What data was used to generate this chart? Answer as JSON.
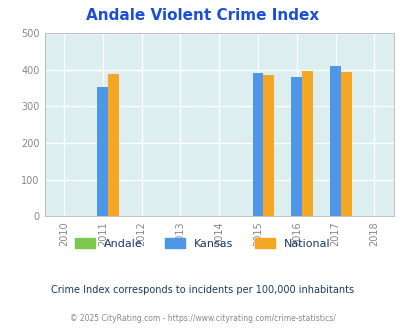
{
  "title": "Andale Violent Crime Index",
  "title_color": "#1a4fd6",
  "years": [
    2010,
    2011,
    2012,
    2013,
    2014,
    2015,
    2016,
    2017,
    2018
  ],
  "bar_years": [
    2011,
    2015,
    2016,
    2017
  ],
  "andale_values": [
    0,
    0,
    0,
    0
  ],
  "kansas_values": [
    352,
    390,
    380,
    410
  ],
  "national_values": [
    388,
    385,
    397,
    393
  ],
  "bar_width": 0.28,
  "kansas_color": "#4d96e8",
  "national_color": "#f5a623",
  "andale_color": "#7dc74a",
  "bg_color": "#dceef0",
  "grid_color": "#ffffff",
  "ylim": [
    0,
    500
  ],
  "yticks": [
    0,
    100,
    200,
    300,
    400,
    500
  ],
  "tick_label_color": "#888888",
  "subtitle": "Crime Index corresponds to incidents per 100,000 inhabitants",
  "subtitle_color": "#1a3a6e",
  "copyright": "© 2025 CityRating.com - https://www.cityrating.com/crime-statistics/",
  "copyright_color": "#888888",
  "legend_labels": [
    "Andale",
    "Kansas",
    "National"
  ],
  "legend_label_color": "#1a3a6e",
  "fig_bg_color": "#ffffff"
}
